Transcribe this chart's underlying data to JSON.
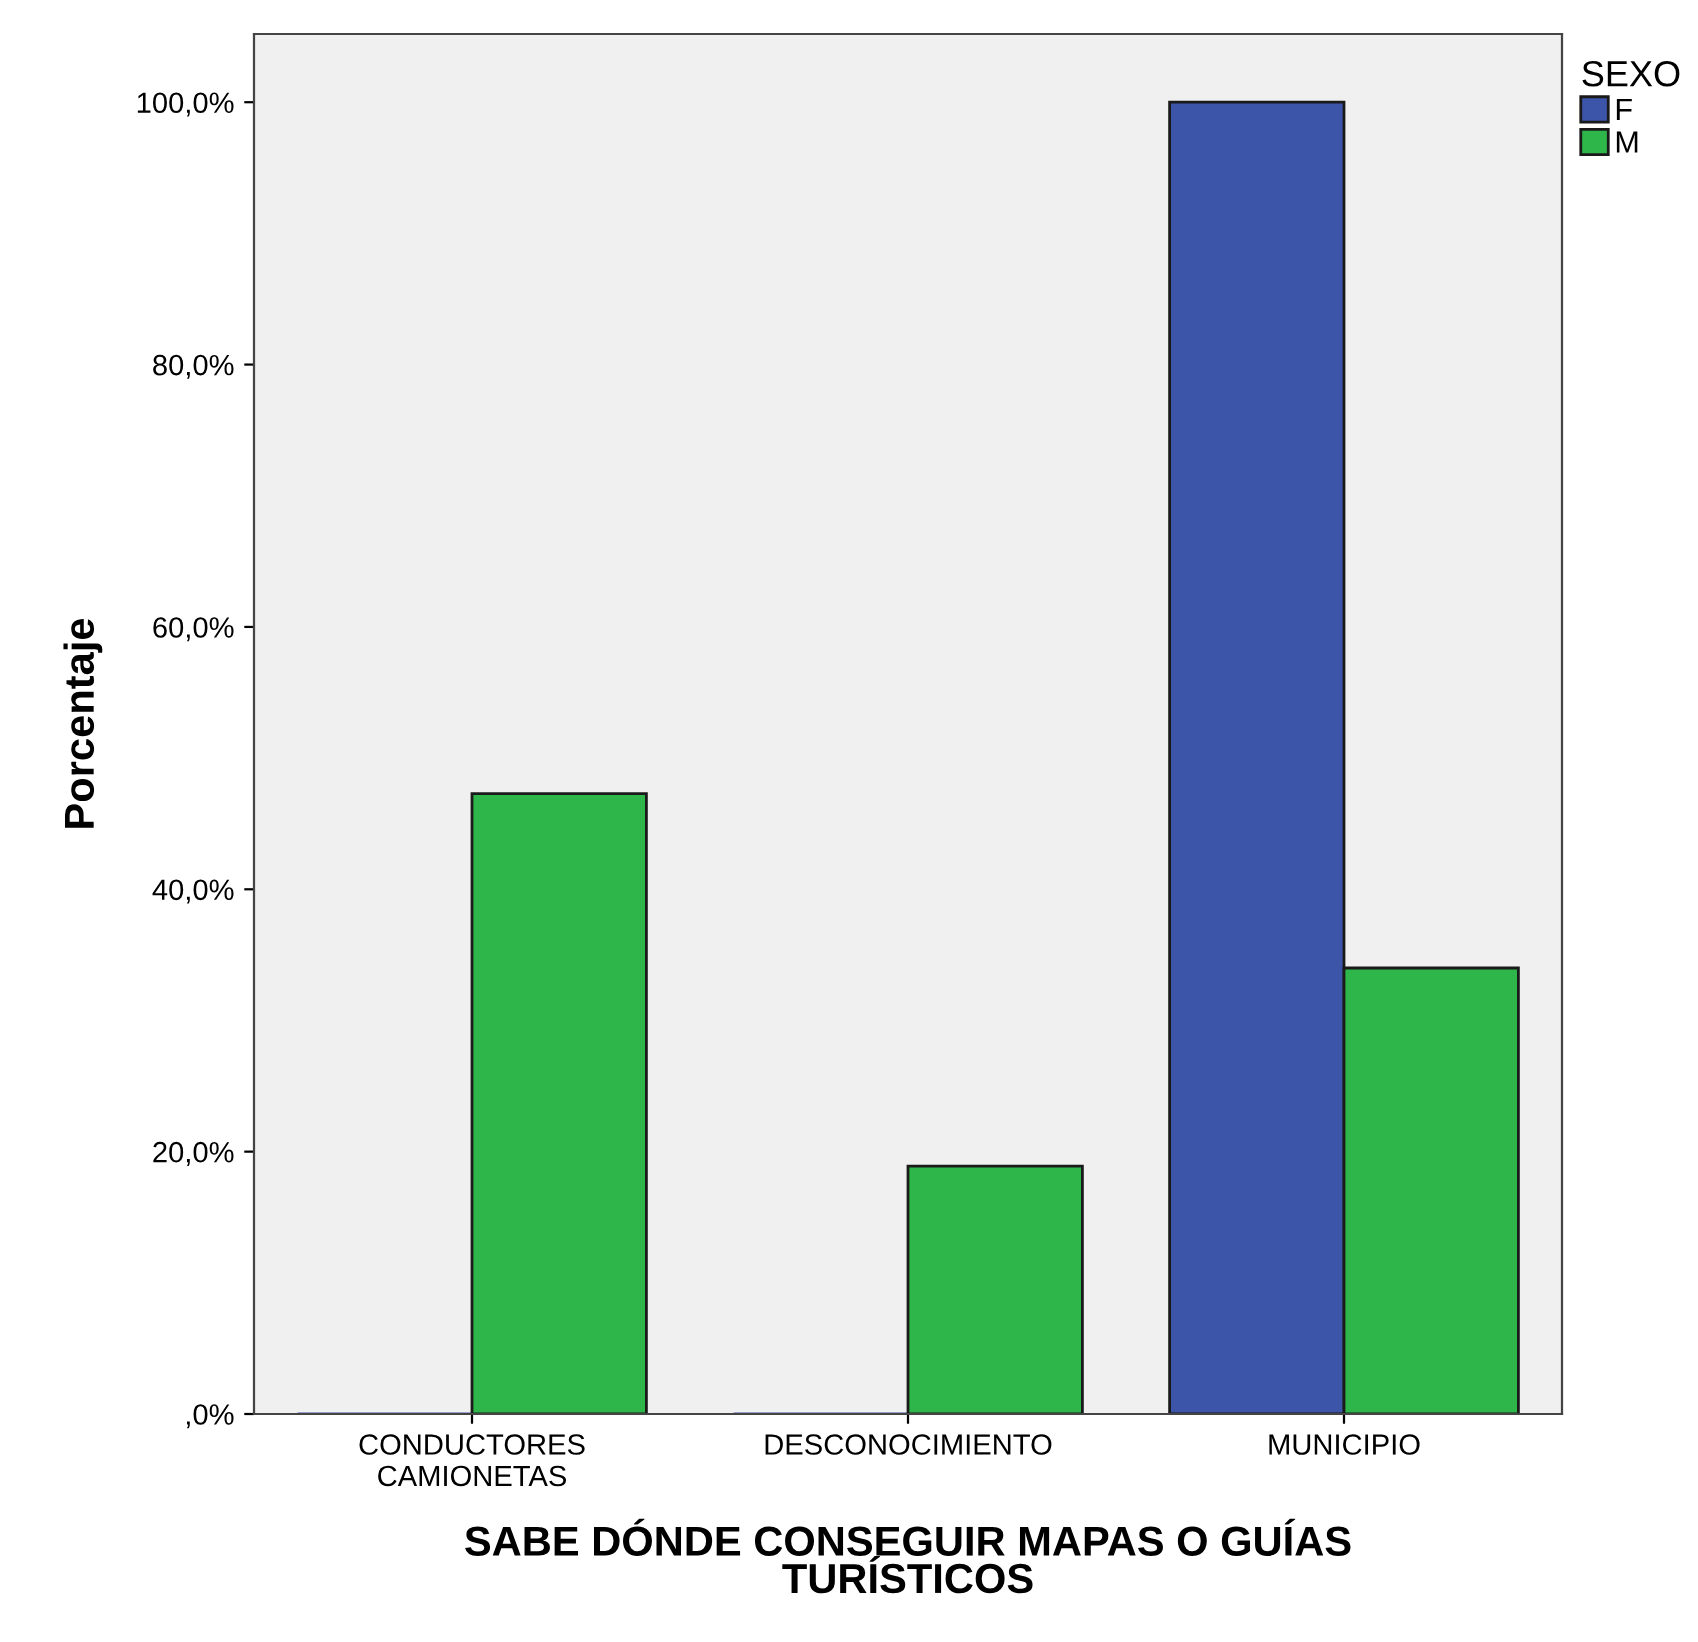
{
  "chart_data": {
    "type": "bar",
    "xlabel": "SABE DÓNDE CONSEGUIR MAPAS O GUÍAS\nTURÍSTICOS",
    "ylabel": "Porcentaje",
    "legend_title": "SEXO",
    "categories": [
      "CONDUCTORES\nCAMIONETAS",
      "DESCONOCIMIENTO",
      "MUNICIPIO"
    ],
    "series": [
      {
        "name": "F",
        "color": "#3c55a9",
        "values": [
          0,
          0,
          100
        ]
      },
      {
        "name": "M",
        "color": "#2eb64a",
        "values": [
          47.3,
          18.9,
          34.0
        ]
      }
    ],
    "ylim": [
      0,
      105.2
    ],
    "yticks": [
      {
        "value": 0,
        "label": ",0%"
      },
      {
        "value": 20,
        "label": "20,0%"
      },
      {
        "value": 40,
        "label": "40,0%"
      },
      {
        "value": 60,
        "label": "60,0%"
      },
      {
        "value": 80,
        "label": "80,0%"
      },
      {
        "value": 100,
        "label": "100,0%"
      }
    ],
    "grid": false,
    "legend": "top right"
  }
}
